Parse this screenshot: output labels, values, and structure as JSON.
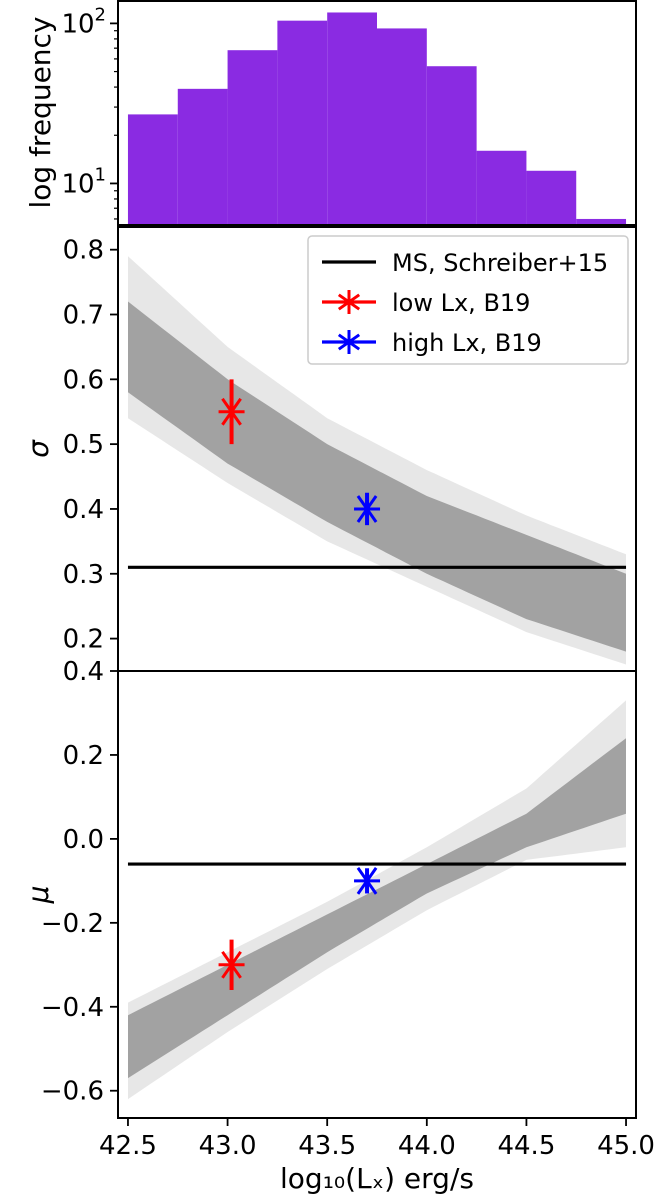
{
  "chart_data": [
    {
      "type": "bar",
      "panel": "histogram",
      "ylabel": "log frequency",
      "yscale": "log",
      "ylim": [
        5.5,
        140
      ],
      "xlim": [
        42.45,
        45.05
      ],
      "color": "#8a2be2",
      "bins": [
        {
          "x0": 42.5,
          "x1": 42.75,
          "count": 27
        },
        {
          "x0": 42.75,
          "x1": 43.0,
          "count": 39
        },
        {
          "x0": 43.0,
          "x1": 43.25,
          "count": 68
        },
        {
          "x0": 43.25,
          "x1": 43.5,
          "count": 104
        },
        {
          "x0": 43.5,
          "x1": 43.75,
          "count": 117
        },
        {
          "x0": 43.75,
          "x1": 44.0,
          "count": 93
        },
        {
          "x0": 44.0,
          "x1": 44.25,
          "count": 54
        },
        {
          "x0": 44.25,
          "x1": 44.5,
          "count": 16
        },
        {
          "x0": 44.5,
          "x1": 44.75,
          "count": 12
        },
        {
          "x0": 44.75,
          "x1": 45.0,
          "count": 6
        }
      ],
      "yticks": [
        {
          "value": 10,
          "label_base": "10",
          "label_exp": "1"
        },
        {
          "value": 100,
          "label_base": "10",
          "label_exp": "2"
        }
      ]
    },
    {
      "type": "line",
      "panel": "sigma",
      "ylabel": "σ",
      "xlim": [
        42.45,
        45.05
      ],
      "ylim": [
        0.15,
        0.835
      ],
      "yticks": [
        "0.2",
        "0.3",
        "0.4",
        "0.5",
        "0.6",
        "0.7",
        "0.8"
      ],
      "band": {
        "x": [
          42.5,
          43.0,
          43.5,
          44.0,
          44.5,
          45.0
        ],
        "upper": [
          0.72,
          0.6,
          0.5,
          0.42,
          0.36,
          0.3
        ],
        "lower": [
          0.58,
          0.47,
          0.38,
          0.3,
          0.23,
          0.18
        ],
        "outer_upper": [
          0.79,
          0.65,
          0.54,
          0.46,
          0.39,
          0.33
        ],
        "outer_lower": [
          0.54,
          0.44,
          0.35,
          0.28,
          0.21,
          0.16
        ],
        "color": "#9e9e9e"
      },
      "series": [
        {
          "name": "MS, Schreiber+15",
          "kind": "hline",
          "y": 0.31,
          "color": "#000000"
        },
        {
          "name": "low Lx, B19",
          "kind": "point",
          "x": 43.02,
          "y": 0.55,
          "yerr": 0.05,
          "color": "#ff0000"
        },
        {
          "name": "high Lx, B19",
          "kind": "point",
          "x": 43.7,
          "y": 0.4,
          "yerr": 0.025,
          "color": "#0000ff"
        }
      ],
      "legend": "top-right"
    },
    {
      "type": "line",
      "panel": "mu",
      "ylabel": "μ",
      "xlabel": "log₁₀(Lₓ) erg/s",
      "xlim": [
        42.45,
        45.05
      ],
      "ylim": [
        -0.665,
        0.4
      ],
      "yticks": [
        "−0.6",
        "−0.4",
        "−0.2",
        "0.0",
        "0.2",
        "0.4"
      ],
      "xticks": [
        "42.5",
        "43.0",
        "43.5",
        "44.0",
        "44.5",
        "45.0"
      ],
      "band": {
        "x": [
          42.5,
          43.0,
          43.5,
          44.0,
          44.5,
          45.0
        ],
        "upper": [
          -0.42,
          -0.3,
          -0.18,
          -0.06,
          0.06,
          0.24
        ],
        "lower": [
          -0.57,
          -0.42,
          -0.27,
          -0.13,
          -0.02,
          0.06
        ],
        "outer_upper": [
          -0.39,
          -0.27,
          -0.15,
          -0.02,
          0.12,
          0.33
        ],
        "outer_lower": [
          -0.62,
          -0.46,
          -0.31,
          -0.17,
          -0.05,
          -0.02
        ],
        "color": "#9e9e9e"
      },
      "series": [
        {
          "name": "MS, Schreiber+15",
          "kind": "hline",
          "y": -0.06,
          "color": "#000000"
        },
        {
          "name": "low Lx, B19",
          "kind": "point",
          "x": 43.02,
          "y": -0.3,
          "yerr": 0.06,
          "color": "#ff0000"
        },
        {
          "name": "high Lx, B19",
          "kind": "point",
          "x": 43.7,
          "y": -0.1,
          "yerr": 0.03,
          "color": "#0000ff"
        }
      ]
    }
  ]
}
